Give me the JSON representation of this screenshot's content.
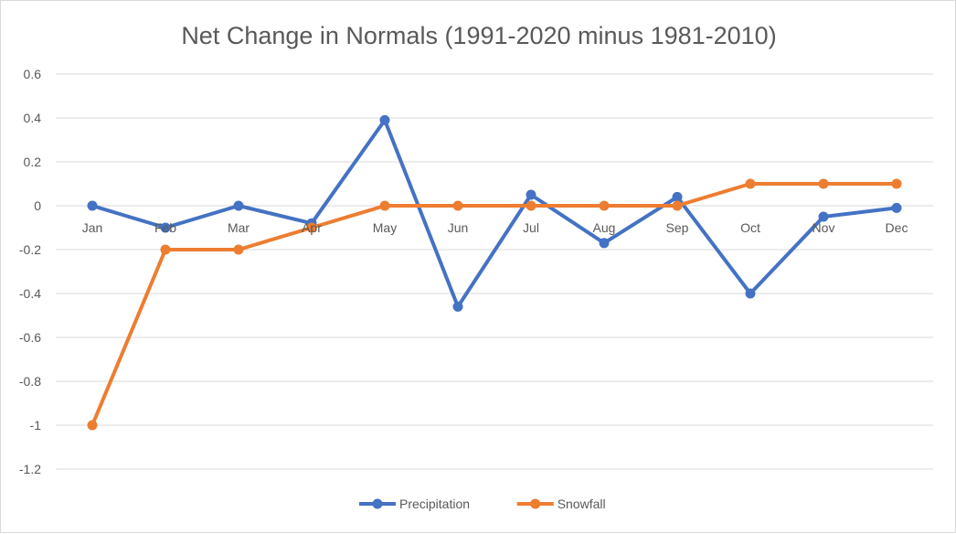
{
  "chart_data": {
    "type": "line",
    "title": "Net Change in Normals (1991-2020 minus 1981-2010)",
    "xlabel": "",
    "ylabel": "",
    "categories": [
      "Jan",
      "Feb",
      "Mar",
      "Apr",
      "May",
      "Jun",
      "Jul",
      "Aug",
      "Sep",
      "Oct",
      "Nov",
      "Dec"
    ],
    "ylim": [
      -1.2,
      0.6
    ],
    "y_ticks": [
      0.6,
      0.4,
      0.2,
      0,
      -0.2,
      -0.4,
      -0.6,
      -0.8,
      -1,
      -1.2
    ],
    "y_tick_labels": [
      "0.6",
      "0.4",
      "0.2",
      "0",
      "-0.2",
      "-0.4",
      "-0.6",
      "-0.8",
      "-1",
      "-1.2"
    ],
    "grid": true,
    "legend_position": "bottom",
    "series": [
      {
        "name": "Precipitation",
        "color": "#4472C4",
        "values": [
          0,
          -0.1,
          0,
          -0.08,
          0.39,
          -0.46,
          0.05,
          -0.17,
          0.04,
          -0.4,
          -0.05,
          -0.01
        ]
      },
      {
        "name": "Snowfall",
        "color": "#ED7D31",
        "values": [
          -1,
          -0.2,
          -0.2,
          -0.1,
          0,
          0,
          0,
          0,
          0,
          0.1,
          0.1,
          0.1
        ]
      }
    ]
  }
}
